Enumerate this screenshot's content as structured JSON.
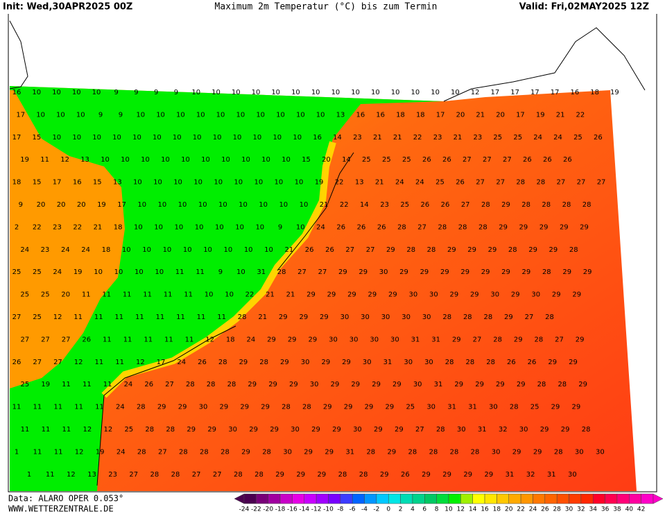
{
  "header": {
    "init": "Init: Wed,30APR2025 00Z",
    "title": "Maximum 2m Temperatur (°C) bis zum Termin",
    "valid": "Valid: Fri,02MAY2025 12Z"
  },
  "footer": {
    "data": "Data: ALARO OPER 0.053°",
    "site": "WWW.WETTERZENTRALE.DE"
  },
  "grid_values": [
    [
      16,
      10,
      10,
      10,
      10,
      9,
      9,
      9,
      9,
      10,
      10,
      10,
      10,
      10,
      10,
      10,
      10,
      10,
      10,
      10,
      10,
      10,
      10,
      12,
      17,
      17,
      17,
      17,
      16,
      18,
      19
    ],
    [
      17,
      10,
      10,
      10,
      9,
      9,
      10,
      10,
      10,
      10,
      10,
      10,
      10,
      10,
      10,
      10,
      13,
      16,
      16,
      18,
      18,
      17,
      20,
      21,
      20,
      17,
      19,
      21,
      22
    ],
    [
      17,
      15,
      10,
      10,
      10,
      10,
      10,
      10,
      10,
      10,
      10,
      10,
      10,
      10,
      10,
      16,
      14,
      23,
      21,
      21,
      22,
      23,
      21,
      23,
      25,
      25,
      24,
      24,
      25,
      26
    ],
    [
      19,
      11,
      12,
      13,
      10,
      10,
      10,
      10,
      10,
      10,
      10,
      10,
      10,
      10,
      15,
      20,
      14,
      25,
      25,
      25,
      26,
      26,
      27,
      27,
      27,
      26,
      26,
      26
    ],
    [
      18,
      15,
      17,
      16,
      15,
      13,
      10,
      10,
      10,
      10,
      10,
      10,
      10,
      10,
      10,
      19,
      22,
      13,
      21,
      24,
      24,
      25,
      26,
      27,
      27,
      28,
      28,
      27,
      27,
      27
    ],
    [
      9,
      20,
      20,
      20,
      19,
      17,
      10,
      10,
      10,
      10,
      10,
      10,
      10,
      10,
      10,
      21,
      22,
      14,
      23,
      25,
      26,
      26,
      27,
      28,
      29,
      28,
      28,
      28,
      28
    ],
    [
      2,
      22,
      23,
      22,
      21,
      18,
      10,
      10,
      10,
      10,
      10,
      10,
      10,
      9,
      10,
      24,
      26,
      26,
      26,
      28,
      27,
      28,
      28,
      28,
      29,
      29,
      29,
      29,
      29
    ],
    [
      24,
      23,
      24,
      24,
      18,
      10,
      10,
      10,
      10,
      10,
      10,
      10,
      10,
      21,
      26,
      26,
      27,
      27,
      29,
      28,
      28,
      29,
      29,
      29,
      28,
      29,
      29,
      28
    ],
    [
      25,
      25,
      24,
      19,
      10,
      10,
      10,
      10,
      11,
      11,
      9,
      10,
      31,
      28,
      27,
      27,
      29,
      29,
      30,
      29,
      29,
      29,
      29,
      29,
      29,
      29,
      28,
      29,
      29
    ],
    [
      25,
      25,
      20,
      11,
      11,
      11,
      11,
      11,
      11,
      10,
      10,
      22,
      21,
      21,
      29,
      29,
      29,
      29,
      29,
      30,
      30,
      29,
      29,
      30,
      29,
      30,
      29,
      29
    ],
    [
      27,
      25,
      12,
      11,
      11,
      11,
      11,
      11,
      11,
      11,
      11,
      28,
      21,
      29,
      29,
      29,
      30,
      30,
      30,
      30,
      30,
      28,
      28,
      28,
      29,
      27,
      28
    ],
    [
      27,
      27,
      27,
      26,
      11,
      11,
      11,
      11,
      11,
      12,
      18,
      24,
      29,
      29,
      29,
      30,
      30,
      30,
      30,
      31,
      31,
      29,
      27,
      28,
      29,
      28,
      27,
      29
    ],
    [
      26,
      27,
      27,
      12,
      11,
      11,
      12,
      17,
      24,
      26,
      28,
      29,
      28,
      29,
      30,
      29,
      29,
      30,
      31,
      30,
      30,
      28,
      28,
      28,
      26,
      26,
      29,
      29
    ],
    [
      25,
      19,
      11,
      11,
      11,
      24,
      26,
      27,
      28,
      28,
      28,
      29,
      29,
      29,
      30,
      29,
      29,
      29,
      29,
      30,
      31,
      29,
      29,
      29,
      29,
      28,
      28,
      29
    ],
    [
      11,
      11,
      11,
      11,
      11,
      24,
      28,
      29,
      29,
      30,
      29,
      29,
      29,
      28,
      28,
      29,
      29,
      29,
      29,
      25,
      30,
      31,
      31,
      30,
      28,
      25,
      29,
      29
    ],
    [
      11,
      11,
      11,
      12,
      12,
      25,
      28,
      28,
      29,
      29,
      30,
      29,
      29,
      30,
      29,
      29,
      30,
      29,
      29,
      27,
      28,
      30,
      31,
      32,
      30,
      29,
      29,
      28
    ],
    [
      1,
      11,
      11,
      12,
      19,
      24,
      28,
      27,
      28,
      28,
      28,
      29,
      28,
      30,
      29,
      29,
      31,
      28,
      29,
      28,
      28,
      28,
      28,
      30,
      29,
      29,
      28,
      30,
      30
    ],
    [
      1,
      11,
      12,
      13,
      23,
      27,
      28,
      28,
      27,
      27,
      28,
      28,
      29,
      29,
      29,
      28,
      28,
      29,
      26,
      29,
      29,
      29,
      29,
      31,
      32,
      31,
      30
    ]
  ],
  "legend": {
    "ticks": [
      -24,
      -22,
      -20,
      -18,
      -16,
      -14,
      -12,
      -10,
      -8,
      -6,
      -4,
      -2,
      0,
      2,
      4,
      6,
      8,
      10,
      12,
      14,
      16,
      18,
      20,
      22,
      24,
      26,
      28,
      30,
      32,
      34,
      36,
      38,
      40,
      42
    ],
    "colors": [
      "#4b0050",
      "#780078",
      "#a000a0",
      "#c800c8",
      "#e600e6",
      "#c800ff",
      "#a000ff",
      "#7800ff",
      "#3c3cff",
      "#0064ff",
      "#0096ff",
      "#00c8ff",
      "#00e6e6",
      "#00dcb4",
      "#00d28c",
      "#00c864",
      "#00dc3c",
      "#00f000",
      "#a0f000",
      "#ffff00",
      "#ffe600",
      "#ffc800",
      "#ffaa00",
      "#ff9600",
      "#ff7800",
      "#ff6400",
      "#ff5000",
      "#ff3c00",
      "#ff2800",
      "#ff0028",
      "#ff0050",
      "#ff0078",
      "#ff00a0",
      "#ff00c8"
    ]
  }
}
